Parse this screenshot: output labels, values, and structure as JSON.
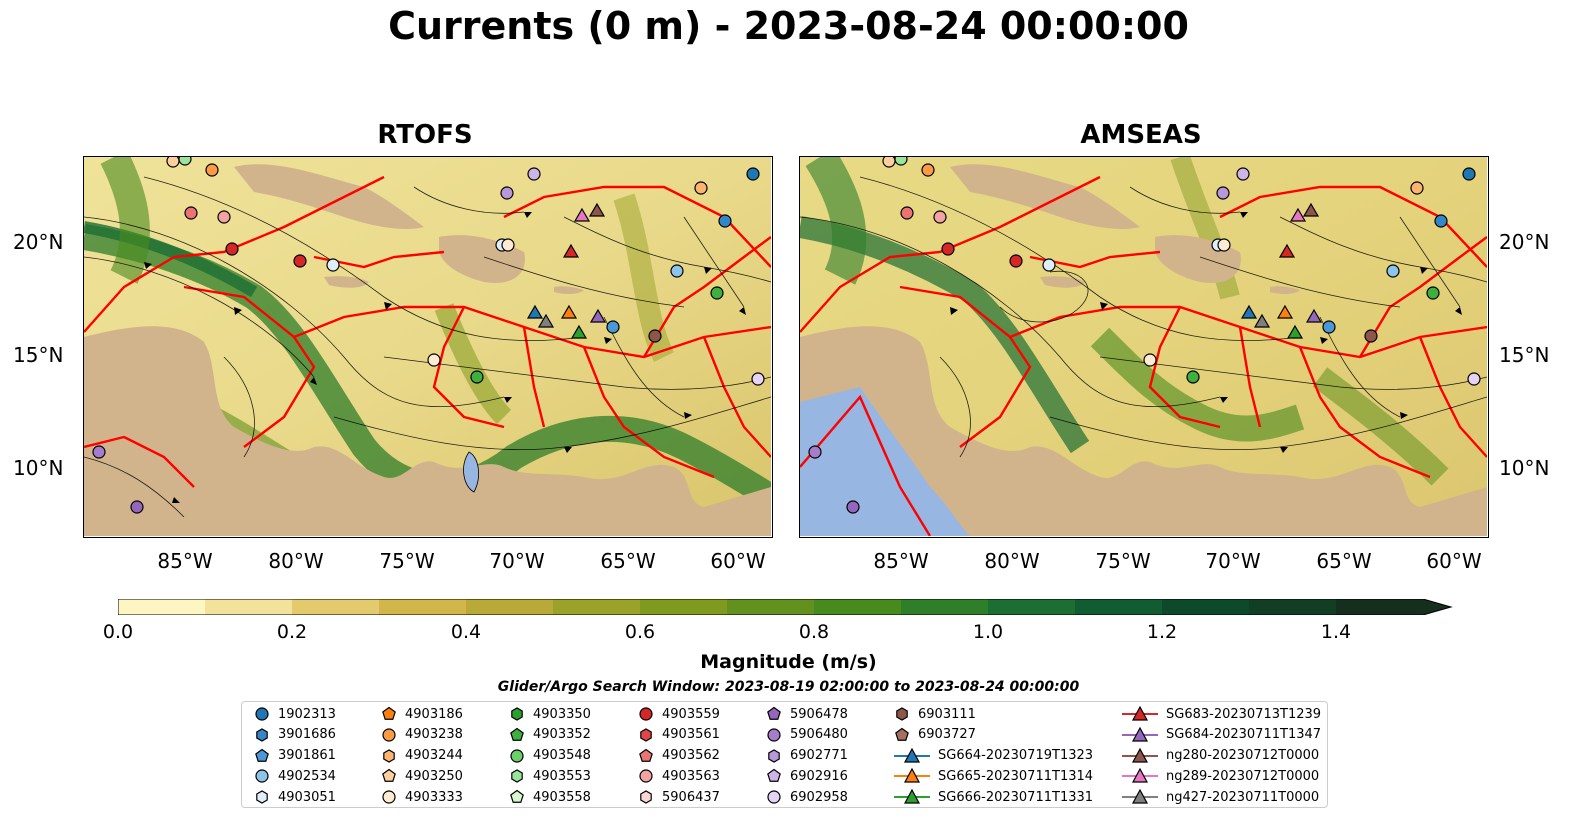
{
  "title": "Currents (0 m) - 2023-08-24 00:00:00",
  "panels": [
    {
      "title": "RTOFS"
    },
    {
      "title": "AMSEAS"
    }
  ],
  "lat_labels": [
    "20°N",
    "15°N",
    "10°N"
  ],
  "lon_labels": [
    "85°W",
    "80°W",
    "75°W",
    "70°W",
    "65°W",
    "60°W"
  ],
  "colorbar": {
    "label": "Magnitude (m/s)",
    "ticks": [
      "0.0",
      "0.2",
      "0.4",
      "0.6",
      "0.8",
      "1.0",
      "1.2",
      "1.4"
    ],
    "min": 0,
    "max": 1.5,
    "colors": [
      "#fdf6c3",
      "#f2e29a",
      "#e4ca6c",
      "#d2b54b",
      "#b9a93a",
      "#9aa22a",
      "#7f9a1e",
      "#62911f",
      "#498a1e",
      "#2f7e2a",
      "#1c6e33",
      "#115c30",
      "#0d4a2a",
      "#123e24",
      "#152e1e"
    ]
  },
  "search_window": "Glider/Argo Search Window: 2023-08-19 02:00:00 to 2023-08-24 00:00:00",
  "legend": [
    {
      "label": "1902313",
      "marker": "circle",
      "color": "#1f77b4"
    },
    {
      "label": "3901686",
      "marker": "hexagon",
      "color": "#3586c8"
    },
    {
      "label": "3901861",
      "marker": "pentagon",
      "color": "#4b98d6"
    },
    {
      "label": "4902534",
      "marker": "circle",
      "color": "#8cc4ea"
    },
    {
      "label": "4903051",
      "marker": "hexagon",
      "color": "#dfeefa"
    },
    {
      "label": "4903186",
      "marker": "pentagon",
      "color": "#ff7f0e"
    },
    {
      "label": "4903238",
      "marker": "circle",
      "color": "#fd9a44"
    },
    {
      "label": "4903244",
      "marker": "hexagon",
      "color": "#fdb470"
    },
    {
      "label": "4903250",
      "marker": "pentagon",
      "color": "#fdcf9e"
    },
    {
      "label": "4903333",
      "marker": "circle",
      "color": "#feebd3"
    },
    {
      "label": "4903350",
      "marker": "hexagon",
      "color": "#2ca02c"
    },
    {
      "label": "4903352",
      "marker": "pentagon",
      "color": "#3fb03f"
    },
    {
      "label": "4903548",
      "marker": "circle",
      "color": "#6ccf6c"
    },
    {
      "label": "4903553",
      "marker": "hexagon",
      "color": "#9be59b"
    },
    {
      "label": "4903558",
      "marker": "pentagon",
      "color": "#d8f6d0"
    },
    {
      "label": "4903559",
      "marker": "circle",
      "color": "#d62728"
    },
    {
      "label": "4903561",
      "marker": "hexagon",
      "color": "#e04647"
    },
    {
      "label": "4903562",
      "marker": "pentagon",
      "color": "#ec7374"
    },
    {
      "label": "4903563",
      "marker": "circle",
      "color": "#f4a3a3"
    },
    {
      "label": "5906437",
      "marker": "hexagon",
      "color": "#fcd6d4"
    },
    {
      "label": "5906478",
      "marker": "pentagon",
      "color": "#9467bd"
    },
    {
      "label": "5906480",
      "marker": "circle",
      "color": "#a57dcb"
    },
    {
      "label": "6902771",
      "marker": "hexagon",
      "color": "#b897db"
    },
    {
      "label": "6902916",
      "marker": "pentagon",
      "color": "#ceb5e8"
    },
    {
      "label": "6902958",
      "marker": "circle",
      "color": "#e6d4f5"
    },
    {
      "label": "6903111",
      "marker": "hexagon",
      "color": "#8c564b"
    },
    {
      "label": "6903727",
      "marker": "pentagon",
      "color": "#a5705f"
    },
    {
      "label": "SG664-20230719T1323",
      "marker": "triangle-line",
      "color": "#1f77b4"
    },
    {
      "label": "SG665-20230711T1314",
      "marker": "triangle-line",
      "color": "#ff7f0e"
    },
    {
      "label": "SG666-20230711T1331",
      "marker": "triangle-line",
      "color": "#2ca02c"
    },
    {
      "label": "SG683-20230713T1239",
      "marker": "triangle-line",
      "color": "#d62728"
    },
    {
      "label": "SG684-20230711T1347",
      "marker": "triangle-line",
      "color": "#9467bd"
    },
    {
      "label": "ng280-20230712T0000",
      "marker": "triangle-line",
      "color": "#8c564b"
    },
    {
      "label": "ng289-20230712T0000",
      "marker": "triangle-line",
      "color": "#e377c2"
    },
    {
      "label": "ng427-20230711T0000",
      "marker": "triangle-line",
      "color": "#7f7f7f"
    }
  ],
  "colors": {
    "land": "#d2b48c",
    "lake": "#97b6e1",
    "eez": "#ff0000",
    "streamline": "#000000"
  }
}
